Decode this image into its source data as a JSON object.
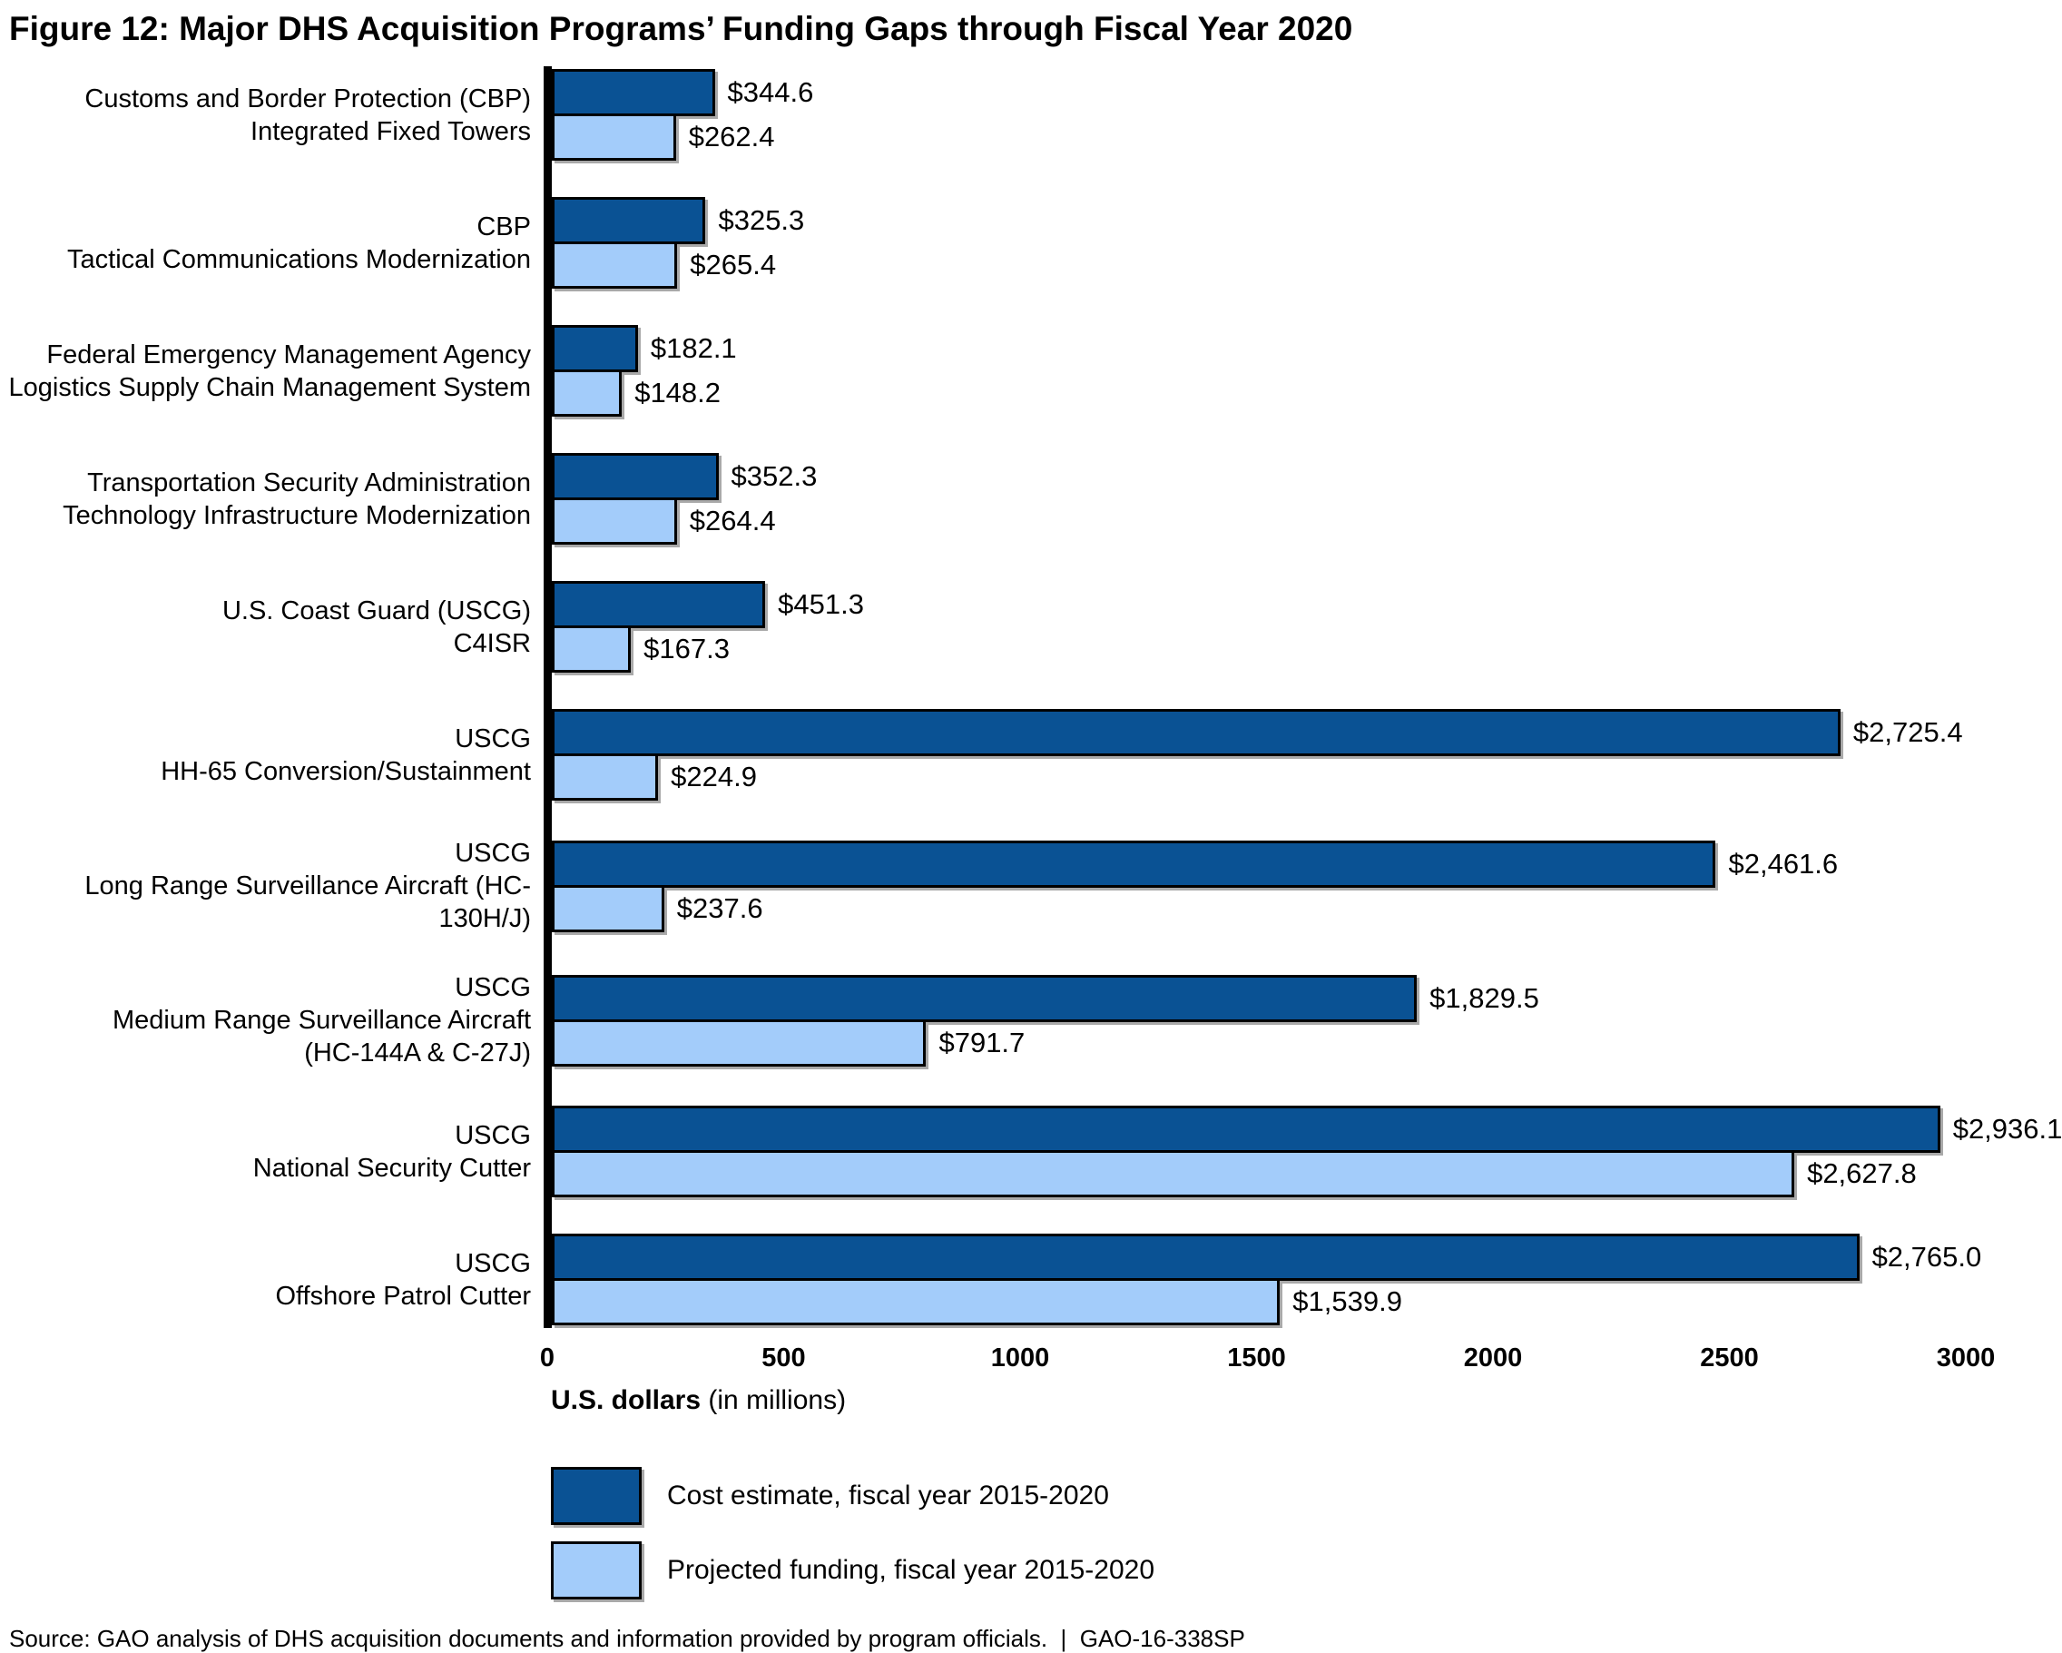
{
  "title": "Figure 12: Major DHS Acquisition Programs’ Funding Gaps through Fiscal Year 2020",
  "source": "Source: GAO analysis of DHS acquisition documents and information provided by program officials.  |  GAO-16-338SP",
  "chart_data": {
    "type": "bar",
    "orientation": "horizontal",
    "title": "Figure 12: Major DHS Acquisition Programs’ Funding Gaps through Fiscal Year 2020",
    "xlabel_bold": "U.S. dollars",
    "xlabel_note": "(in millions)",
    "xlim": [
      0,
      3000
    ],
    "x_ticks": [
      "0",
      "500",
      "1000",
      "1500",
      "2000",
      "2500",
      "3000"
    ],
    "grid": false,
    "legend_position": "bottom-left",
    "colors": {
      "cost_estimate": "#0A5294",
      "projected_funding": "#A3CCFA",
      "bar_border": "#000000"
    },
    "legend": [
      {
        "label": "Cost estimate, fiscal year 2015-2020",
        "color": "#0A5294"
      },
      {
        "label": "Projected funding, fiscal year 2015-2020",
        "color": "#A3CCFA"
      }
    ],
    "categories": [
      "Customs and Border Protection (CBP) Integrated Fixed Towers",
      "CBP Tactical Communications Modernization",
      "Federal Emergency Management Agency Logistics Supply Chain Management System",
      "Transportation Security Administration Technology Infrastructure Modernization",
      "U.S. Coast Guard (USCG) C4ISR",
      "USCG HH-65 Conversion/Sustainment",
      "USCG Long Range Surveillance Aircraft (HC-130H/J)",
      "USCG Medium Range Surveillance Aircraft (HC-144A & C-27J)",
      "USCG National Security Cutter",
      "USCG Offshore Patrol Cutter"
    ],
    "series": [
      {
        "name": "Cost estimate, fiscal year 2015-2020",
        "values": [
          344.6,
          325.3,
          182.1,
          352.3,
          451.3,
          2725.4,
          2461.6,
          1829.5,
          2936.1,
          2765.0
        ]
      },
      {
        "name": "Projected funding, fiscal year 2015-2020",
        "values": [
          262.4,
          265.4,
          148.2,
          264.4,
          167.3,
          224.9,
          237.6,
          791.7,
          2627.8,
          1539.9
        ]
      }
    ],
    "groups": [
      {
        "label_lines": [
          "Customs and Border Protection (CBP)",
          "Integrated Fixed Towers"
        ],
        "bars": [
          {
            "series": "cost-estimate",
            "value": 344.6,
            "label": "$344.6"
          },
          {
            "series": "projected-funding",
            "value": 262.4,
            "label": "$262.4"
          }
        ]
      },
      {
        "label_lines": [
          "CBP",
          "Tactical Communications Modernization"
        ],
        "bars": [
          {
            "series": "cost-estimate",
            "value": 325.3,
            "label": "$325.3"
          },
          {
            "series": "projected-funding",
            "value": 265.4,
            "label": "$265.4"
          }
        ]
      },
      {
        "label_lines": [
          "Federal Emergency Management Agency",
          "Logistics Supply Chain Management System"
        ],
        "bars": [
          {
            "series": "cost-estimate",
            "value": 182.1,
            "label": "$182.1"
          },
          {
            "series": "projected-funding",
            "value": 148.2,
            "label": "$148.2"
          }
        ]
      },
      {
        "label_lines": [
          "Transportation Security Administration",
          "Technology Infrastructure Modernization"
        ],
        "bars": [
          {
            "series": "cost-estimate",
            "value": 352.3,
            "label": "$352.3"
          },
          {
            "series": "projected-funding",
            "value": 264.4,
            "label": "$264.4"
          }
        ]
      },
      {
        "label_lines": [
          "U.S. Coast Guard (USCG)",
          "C4ISR"
        ],
        "bars": [
          {
            "series": "cost-estimate",
            "value": 451.3,
            "label": "$451.3"
          },
          {
            "series": "projected-funding",
            "value": 167.3,
            "label": "$167.3"
          }
        ]
      },
      {
        "label_lines": [
          "USCG",
          "HH-65 Conversion/Sustainment"
        ],
        "bars": [
          {
            "series": "cost-estimate",
            "value": 2725.4,
            "label": "$2,725.4"
          },
          {
            "series": "projected-funding",
            "value": 224.9,
            "label": "$224.9"
          }
        ]
      },
      {
        "label_lines": [
          "USCG",
          "Long Range Surveillance Aircraft (HC-130H/J)"
        ],
        "bars": [
          {
            "series": "cost-estimate",
            "value": 2461.6,
            "label": "$2,461.6"
          },
          {
            "series": "projected-funding",
            "value": 237.6,
            "label": "$237.6"
          }
        ]
      },
      {
        "label_lines": [
          "USCG",
          "Medium Range Surveillance Aircraft",
          "(HC-144A & C-27J)"
        ],
        "bars": [
          {
            "series": "cost-estimate",
            "value": 1829.5,
            "label": "$1,829.5"
          },
          {
            "series": "projected-funding",
            "value": 791.7,
            "label": "$791.7"
          }
        ]
      },
      {
        "label_lines": [
          "USCG",
          "National Security Cutter"
        ],
        "bars": [
          {
            "series": "cost-estimate",
            "value": 2936.1,
            "label": "$2,936.1"
          },
          {
            "series": "projected-funding",
            "value": 2627.8,
            "label": "$2,627.8"
          }
        ]
      },
      {
        "label_lines": [
          "USCG",
          "Offshore Patrol Cutter"
        ],
        "bars": [
          {
            "series": "cost-estimate",
            "value": 2765.0,
            "label": "$2,765.0"
          },
          {
            "series": "projected-funding",
            "value": 1539.9,
            "label": "$1,539.9"
          }
        ]
      }
    ]
  }
}
